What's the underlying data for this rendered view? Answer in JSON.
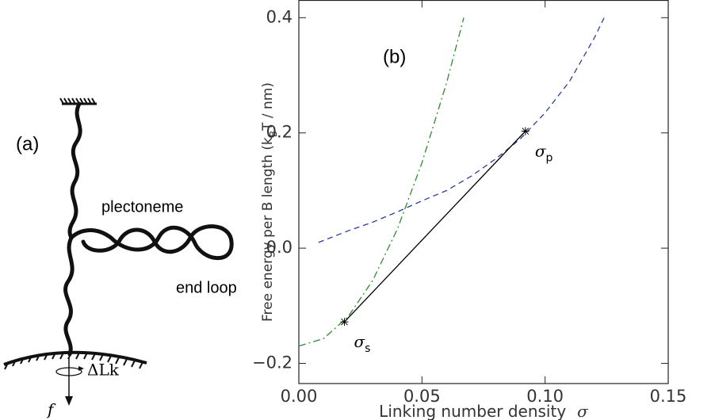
{
  "diagram": {
    "panel_label": "(a)",
    "plectoneme": "plectoneme",
    "end_loop": "end loop",
    "twist": "ΔLk",
    "force": "f"
  },
  "chart_data": {
    "type": "line",
    "panel_label": "(b)",
    "xlabel": "Linking number density",
    "xlabel_symbol": "σ",
    "ylabel_parts": [
      "Free energy per B length  (k",
      "B",
      "T / nm)"
    ],
    "xlim": [
      0,
      0.15
    ],
    "ylim": [
      -0.235,
      0.43
    ],
    "xticks": [
      {
        "value": 0,
        "label": "0.00"
      },
      {
        "value": 0.05,
        "label": "0.05"
      },
      {
        "value": 0.1,
        "label": "0.10"
      },
      {
        "value": 0.15,
        "label": "0.15"
      }
    ],
    "yticks": [
      {
        "value": -0.2,
        "label": "−0.2"
      },
      {
        "value": 0,
        "label": "0.0"
      },
      0.2,
      0.4
    ],
    "series": [
      {
        "color": "#2e8b2e",
        "dash": "9 4 2 4",
        "x": [
          0,
          0.01,
          0.02,
          0.03,
          0.04,
          0.05,
          0.06,
          0.067
        ],
        "values": [
          -0.17,
          -0.157,
          -0.119,
          -0.056,
          0.033,
          0.148,
          0.287,
          0.4
        ]
      },
      {
        "color": "#2b3fa0",
        "dash": "7 5",
        "x": [
          0.008,
          0.02,
          0.03,
          0.04,
          0.05,
          0.06,
          0.07,
          0.08,
          0.09,
          0.1,
          0.11,
          0.12,
          0.124
        ],
        "values": [
          0.01,
          0.03,
          0.045,
          0.063,
          0.082,
          0.1,
          0.125,
          0.155,
          0.19,
          0.235,
          0.29,
          0.365,
          0.4
        ]
      },
      {
        "color": "#000000",
        "x": [
          0.0185,
          0.092
        ],
        "values": [
          -0.128,
          0.203
        ]
      }
    ],
    "markers": {
      "x": [
        0.0185,
        0.092
      ],
      "values": [
        -0.128,
        0.203
      ],
      "labels": [
        "σ",
        "σ"
      ],
      "subs": [
        "s",
        "p"
      ]
    }
  }
}
